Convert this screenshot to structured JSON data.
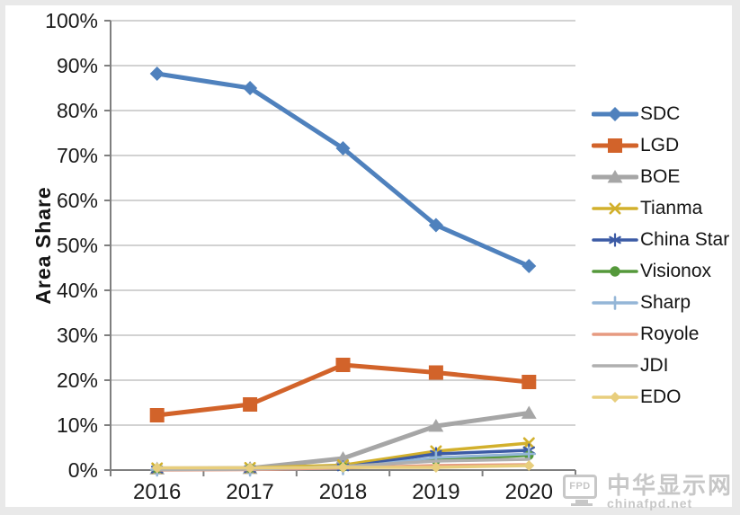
{
  "frame": {
    "border_color": "#e9e9e9",
    "background": "#ffffff"
  },
  "chart_data": {
    "type": "line",
    "title": "",
    "xlabel": "",
    "ylabel": "Area Share",
    "x": [
      "2016",
      "2017",
      "2018",
      "2019",
      "2020"
    ],
    "ylim": [
      0,
      100
    ],
    "y_tick_step": 10,
    "y_tick_labels": [
      "0%",
      "10%",
      "20%",
      "30%",
      "40%",
      "50%",
      "60%",
      "70%",
      "80%",
      "90%",
      "100%"
    ],
    "grid": true,
    "legend_position": "right",
    "axis_color": "#7f7f7f",
    "gridline_color": "#b7b7b7",
    "tick_label_color": "#1a1a1a",
    "series": [
      {
        "name": "SDC",
        "color": "#4F81BD",
        "marker": "diamond",
        "line_width": 5,
        "marker_size": 8,
        "values": [
          88.2,
          85.0,
          71.6,
          54.5,
          45.4
        ]
      },
      {
        "name": "LGD",
        "color": "#D2632A",
        "marker": "square",
        "line_width": 5,
        "marker_size": 8,
        "values": [
          12.2,
          14.6,
          23.4,
          21.7,
          19.6
        ]
      },
      {
        "name": "BOE",
        "color": "#A6A6A6",
        "marker": "triangle-up",
        "line_width": 5,
        "marker_size": 8,
        "values": [
          0.3,
          0.4,
          2.6,
          9.8,
          12.7
        ]
      },
      {
        "name": "Tianma",
        "color": "#D2B02C",
        "marker": "x",
        "line_width": 3.5,
        "marker_size": 6.5,
        "values": [
          0.4,
          0.5,
          1.1,
          4.2,
          6.0
        ]
      },
      {
        "name": "China Star",
        "color": "#3C5BA5",
        "marker": "asterisk",
        "line_width": 3.5,
        "marker_size": 6.5,
        "values": [
          0.1,
          0.2,
          0.6,
          3.6,
          4.4
        ]
      },
      {
        "name": "Visionox",
        "color": "#55993B",
        "marker": "circle",
        "line_width": 3.5,
        "marker_size": 5.5,
        "values": [
          0.3,
          0.4,
          0.7,
          2.2,
          3.3
        ]
      },
      {
        "name": "Sharp",
        "color": "#94B6D7",
        "marker": "plus",
        "line_width": 3,
        "marker_size": 6.5,
        "values": [
          0.1,
          0.1,
          0.4,
          2.8,
          3.6
        ]
      },
      {
        "name": "Royole",
        "color": "#E69A80",
        "marker": "none",
        "line_width": 3.5,
        "marker_size": 0,
        "values": [
          0.0,
          0.1,
          0.5,
          1.0,
          1.2
        ]
      },
      {
        "name": "JDI",
        "color": "#AFAFAF",
        "marker": "none",
        "line_width": 3.5,
        "marker_size": 0,
        "values": [
          0.1,
          0.2,
          0.8,
          2.0,
          2.4
        ]
      },
      {
        "name": "EDO",
        "color": "#E8CE7D",
        "marker": "diamond",
        "line_width": 3.5,
        "marker_size": 6,
        "values": [
          0.5,
          0.5,
          0.6,
          0.6,
          1.0
        ]
      }
    ]
  },
  "watermark": {
    "icon_label": "FPD",
    "title": "中华显示网",
    "url": "chinafpd.net"
  }
}
